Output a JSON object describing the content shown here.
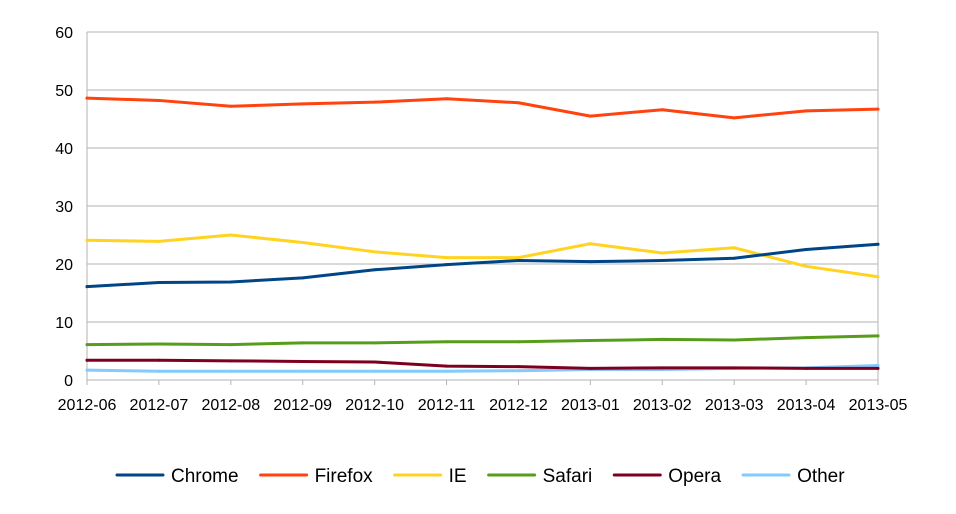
{
  "chart_data": {
    "type": "line",
    "title": "",
    "xlabel": "",
    "ylabel": "",
    "categories": [
      "2012-06",
      "2012-07",
      "2012-08",
      "2012-09",
      "2012-10",
      "2012-11",
      "2012-12",
      "2013-01",
      "2013-02",
      "2013-03",
      "2013-04",
      "2013-05"
    ],
    "ylim": [
      0,
      60
    ],
    "yticks": [
      "0",
      "10",
      "20",
      "30",
      "40",
      "50",
      "60"
    ],
    "grid": "horizontal",
    "legend_position": "bottom",
    "series": [
      {
        "name": "Chrome",
        "color": "#004586",
        "values": [
          16.1,
          16.8,
          16.9,
          17.6,
          19.0,
          19.9,
          20.6,
          20.4,
          20.6,
          21.0,
          22.5,
          23.4
        ]
      },
      {
        "name": "Firefox",
        "color": "#ff420e",
        "values": [
          48.6,
          48.2,
          47.2,
          47.6,
          47.9,
          48.5,
          47.8,
          45.5,
          46.6,
          45.2,
          46.4,
          46.7
        ]
      },
      {
        "name": "IE",
        "color": "#ffd320",
        "values": [
          24.1,
          23.9,
          25.0,
          23.7,
          22.1,
          21.1,
          21.1,
          23.5,
          21.9,
          22.8,
          19.6,
          17.8
        ]
      },
      {
        "name": "Safari",
        "color": "#579d1c",
        "values": [
          6.1,
          6.2,
          6.1,
          6.4,
          6.4,
          6.6,
          6.6,
          6.8,
          7.0,
          6.9,
          7.3,
          7.6
        ]
      },
      {
        "name": "Opera",
        "color": "#7e0021",
        "values": [
          3.4,
          3.4,
          3.3,
          3.2,
          3.1,
          2.4,
          2.3,
          2.0,
          2.1,
          2.1,
          2.0,
          2.0
        ]
      },
      {
        "name": "Other",
        "color": "#83caff",
        "values": [
          1.7,
          1.5,
          1.5,
          1.5,
          1.5,
          1.5,
          1.6,
          1.8,
          1.8,
          2.0,
          2.1,
          2.5
        ]
      }
    ]
  }
}
